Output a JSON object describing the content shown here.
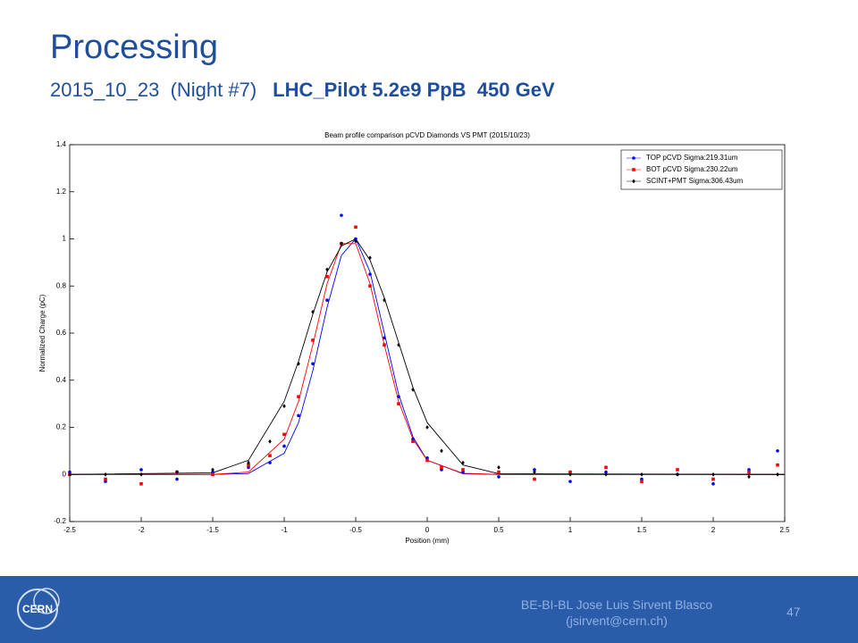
{
  "slide": {
    "title": "Processing",
    "subtitle_date": "2015_10_23  (Night #7)",
    "subtitle_run": "LHC_Pilot 5.2e9 PpB  450 GeV",
    "footer_author": "BE-BI-BL Jose Luis Sirvent Blasco",
    "footer_email": "(jsirvent@cern.ch)",
    "page": "47",
    "logo": "CERN"
  },
  "chart_data": {
    "type": "scatter",
    "title": "Beam profile comparison pCVD Diamonds VS PMT (2015/10/23)",
    "x_label": "Position (mm)",
    "y_label": "Normalized Charge (pC)",
    "xlim": [
      -2.5,
      2.5
    ],
    "xticks": [
      -2.5,
      -2,
      -1.5,
      -1,
      -0.5,
      0,
      0.5,
      1,
      1.5,
      2,
      2.5
    ],
    "ylim": [
      -0.2,
      1.4
    ],
    "yticks": [
      -0.2,
      0,
      0.2,
      0.4,
      0.6,
      0.8,
      1,
      1.2,
      1.4
    ],
    "legend": "upper right",
    "x": [
      -2.5,
      -2.25,
      -2,
      -1.75,
      -1.5,
      -1.25,
      -1.1,
      -1,
      -0.9,
      -0.8,
      -0.7,
      -0.6,
      -0.5,
      -0.4,
      -0.3,
      -0.2,
      -0.1,
      0,
      0.1,
      0.25,
      0.5,
      0.75,
      1,
      1.25,
      1.5,
      1.75,
      2,
      2.25,
      2.45
    ],
    "series": [
      {
        "name": "TOP pCVD Sigma:219.31um",
        "color": "#0000ff",
        "marker": "circle",
        "values": [
          0.01,
          -0.03,
          0.02,
          -0.02,
          0.01,
          0.03,
          0.05,
          0.12,
          0.25,
          0.47,
          0.74,
          1.1,
          1.0,
          0.85,
          0.58,
          0.33,
          0.15,
          0.07,
          0.02,
          0.01,
          -0.01,
          0.02,
          -0.03,
          0.01,
          -0.02,
          0.0,
          -0.04,
          0.02,
          0.1
        ]
      },
      {
        "name": "BOT pCVD Sigma:230.22um",
        "color": "#ff0000",
        "marker": "square",
        "values": [
          0.0,
          -0.02,
          -0.04,
          0.01,
          0.0,
          0.04,
          0.08,
          0.17,
          0.33,
          0.57,
          0.84,
          0.98,
          1.05,
          0.8,
          0.55,
          0.3,
          0.14,
          0.06,
          0.03,
          0.02,
          0.01,
          -0.02,
          0.01,
          0.03,
          -0.03,
          0.02,
          -0.02,
          0.01,
          0.04
        ]
      },
      {
        "name": "SCINT+PMT Sigma:306.43um",
        "color": "#000000",
        "marker": "diamond",
        "values": [
          0.0,
          0.0,
          0.0,
          0.01,
          0.02,
          0.05,
          0.14,
          0.29,
          0.47,
          0.69,
          0.87,
          0.98,
          0.99,
          0.92,
          0.74,
          0.55,
          0.36,
          0.2,
          0.1,
          0.05,
          0.03,
          0.01,
          0.0,
          0.0,
          0.0,
          0.0,
          0.0,
          -0.01,
          0.0
        ]
      }
    ],
    "fit_x": [
      -2.5,
      -1.5,
      -1.25,
      -1,
      -0.9,
      -0.8,
      -0.7,
      -0.6,
      -0.5,
      -0.4,
      -0.3,
      -0.2,
      -0.1,
      0,
      0.25,
      0.5,
      2.5
    ],
    "fits": [
      {
        "color": "#0000ff",
        "values": [
          0,
          0,
          0.004,
          0.09,
          0.22,
          0.44,
          0.71,
          0.93,
          1.0,
          0.86,
          0.6,
          0.34,
          0.16,
          0.06,
          0.003,
          0,
          0
        ]
      },
      {
        "color": "#ff0000",
        "values": [
          0,
          0,
          0.01,
          0.15,
          0.31,
          0.55,
          0.81,
          0.98,
          0.98,
          0.81,
          0.55,
          0.31,
          0.15,
          0.06,
          0.005,
          0,
          0
        ]
      },
      {
        "color": "#000000",
        "values": [
          0,
          0.007,
          0.06,
          0.31,
          0.48,
          0.68,
          0.86,
          0.97,
          1.0,
          0.91,
          0.75,
          0.56,
          0.37,
          0.22,
          0.04,
          0.003,
          0
        ]
      }
    ]
  }
}
